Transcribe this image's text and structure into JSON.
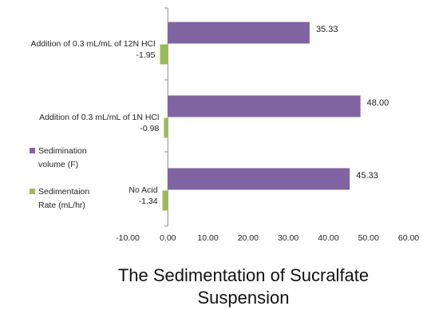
{
  "chart_data": {
    "type": "bar",
    "orientation": "horizontal",
    "title": "The Sedimentation of Sucralfate Suspension",
    "title_lines": [
      "The Sedimentation of Sucralfate",
      "Suspension"
    ],
    "categories": [
      "No Acid",
      "Addition of 0.3 mL/mL of 1N HCl",
      "Addition of 0.3 mL/mL of 12N HCl"
    ],
    "series": [
      {
        "name": "Sedimination volume (F)",
        "name_lines": [
          "Sedimination",
          "volume (F)"
        ],
        "color": "#8064a2",
        "values": [
          45.33,
          48.0,
          35.33
        ]
      },
      {
        "name": "Sedimentaion Rate (mL/hr)",
        "name_lines": [
          "Sedimentaion",
          "Rate (mL/hr)"
        ],
        "color": "#9bbb59",
        "values": [
          -1.34,
          -0.98,
          -1.95
        ]
      }
    ],
    "data_labels": {
      "series_0": [
        "45.33",
        "48.00",
        "35.33"
      ],
      "series_1": [
        "-1.34",
        "-0.98",
        "-1.95"
      ]
    },
    "x_ticks": [
      "-10.00",
      "0.00",
      "10.00",
      "20.00",
      "30.00",
      "40.00",
      "50.00",
      "60.00"
    ],
    "xlim": [
      -10,
      60
    ],
    "xlabel": "",
    "ylabel": "",
    "grid": false,
    "legend_position": "left"
  }
}
